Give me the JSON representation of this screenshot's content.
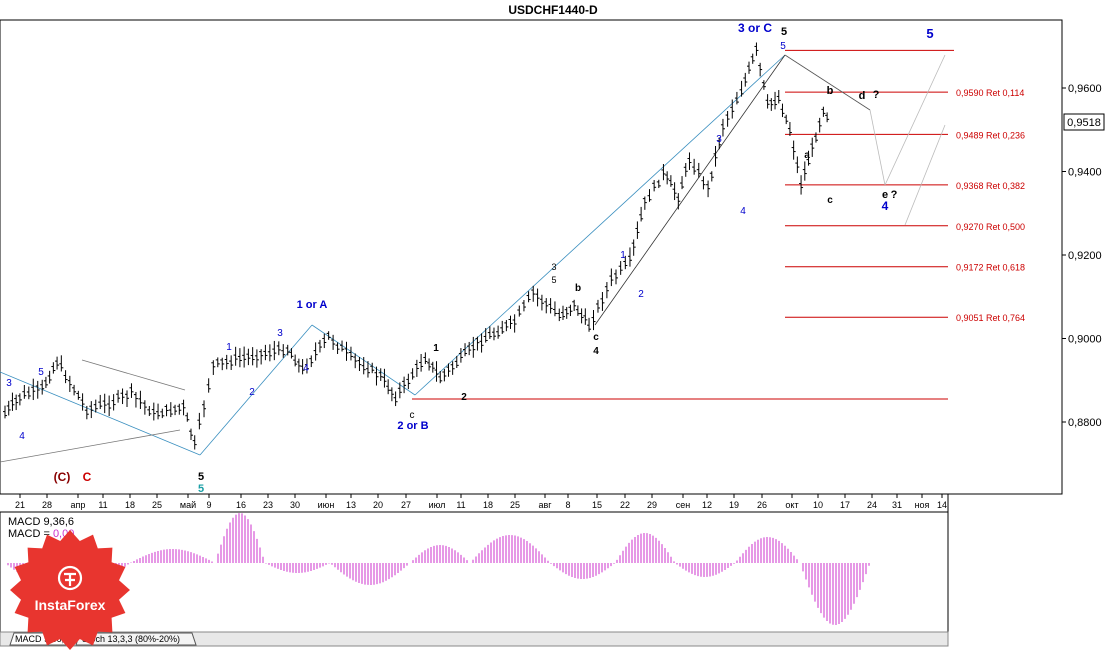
{
  "title": "USDCHF1440-D",
  "current_price": "0,9518",
  "colors": {
    "bar": "#000000",
    "ret": "#cc0000",
    "wave_blue": "#0000cc",
    "wave_cyan": "#1a9fa6",
    "wave_red": "#cc0000",
    "wave_dark": "#880000",
    "macd_pos": "#cc33cc",
    "macd_neg": "#cc33cc",
    "box": "#ff0000"
  },
  "price_axis": [
    "0,9600",
    "0,9400",
    "0,9200",
    "0,9000",
    "0,8800"
  ],
  "time_axis": [
    "21",
    "28",
    "апр",
    "11",
    "18",
    "25",
    "май",
    "9",
    "16",
    "23",
    "30",
    "июн",
    "13",
    "20",
    "27",
    "июл",
    "11",
    "18",
    "25",
    "авг",
    "8",
    "15",
    "22",
    "29",
    "сен",
    "12",
    "19",
    "26",
    "окт",
    "10",
    "17",
    "24",
    "31",
    "ноя",
    "14"
  ],
  "retracements": [
    {
      "label": "0,9590 Ret 0,114",
      "value": 0.959
    },
    {
      "label": "0,9489 Ret 0,236",
      "value": 0.9489
    },
    {
      "label": "0,9368 Ret 0,382",
      "value": 0.9368
    },
    {
      "label": "0,9270 Ret 0,500",
      "value": 0.927
    },
    {
      "label": "0,9172 Ret 0,618",
      "value": 0.9172
    },
    {
      "label": "0,9051 Ret 0,764",
      "value": 0.9051
    }
  ],
  "support_level": 0.8855,
  "top_level": 0.969,
  "wave_labels": [
    {
      "t": "3 or C",
      "col": "blue",
      "b": true
    },
    {
      "t": "5",
      "col": "black",
      "b": true
    },
    {
      "t": "5",
      "col": "blue",
      "b": false
    },
    {
      "t": "5",
      "col": "blue",
      "b": true
    },
    {
      "t": "b",
      "col": "black",
      "b": true
    },
    {
      "t": "d",
      "col": "black",
      "b": true
    },
    {
      "t": "?",
      "col": "black",
      "b": true
    },
    {
      "t": "a",
      "col": "black",
      "b": true
    },
    {
      "t": "c",
      "col": "black",
      "b": true
    },
    {
      "t": "e",
      "col": "black",
      "b": true
    },
    {
      "t": "?",
      "col": "black",
      "b": true
    },
    {
      "t": "4",
      "col": "blue",
      "b": true
    },
    {
      "t": "1 or A",
      "col": "blue",
      "b": true
    },
    {
      "t": "2 or B",
      "col": "blue",
      "b": true
    },
    {
      "t": "(C)",
      "col": "darkred",
      "b": true
    },
    {
      "t": "C",
      "col": "red",
      "b": true
    },
    {
      "t": "5",
      "col": "black",
      "b": true
    },
    {
      "t": "5",
      "col": "cyan",
      "b": true
    },
    {
      "t": "3",
      "col": "blue",
      "b": false
    },
    {
      "t": "5",
      "col": "blue",
      "b": false
    },
    {
      "t": "4",
      "col": "blue",
      "b": false
    },
    {
      "t": "1",
      "col": "blue",
      "b": false
    },
    {
      "t": "2",
      "col": "blue",
      "b": false
    },
    {
      "t": "3",
      "col": "blue",
      "b": false
    },
    {
      "t": "4",
      "col": "blue",
      "b": false
    },
    {
      "t": "1",
      "col": "blue",
      "b": false
    },
    {
      "t": "2",
      "col": "blue",
      "b": false
    },
    {
      "t": "3",
      "col": "blue",
      "b": false
    },
    {
      "t": "4",
      "col": "blue",
      "b": false
    },
    {
      "t": "3",
      "col": "black",
      "b": false
    },
    {
      "t": "5",
      "col": "black",
      "b": false
    },
    {
      "t": "c",
      "col": "black",
      "b": false
    },
    {
      "t": "1",
      "col": "black",
      "b": true
    },
    {
      "t": "2",
      "col": "black",
      "b": true
    },
    {
      "t": "4",
      "col": "black",
      "b": true
    },
    {
      "t": "b",
      "col": "black",
      "b": true
    },
    {
      "t": "c",
      "col": "black",
      "b": true
    }
  ],
  "indicator": {
    "line1": "MACD 9,36,6",
    "line2_prefix": "MACD = ",
    "line2_value": "0,00",
    "tab1": "MACD 9,36,6",
    "tab2": "Stoch 13,3,3 (80%-20%)"
  },
  "logo": {
    "brand": "InstaForex"
  },
  "chart_data": {
    "type": "candlestick",
    "title": "USDCHF1440-D",
    "y_axis": {
      "ticks": [
        0.96,
        0.94,
        0.92,
        0.9,
        0.88
      ],
      "ylim": [
        0.8715,
        0.9765
      ]
    },
    "path_points": [
      {
        "x": "Mar 17",
        "y": 0.882
      },
      {
        "x": "Mar 21",
        "y": 0.886
      },
      {
        "x": "Mar 27",
        "y": 0.888
      },
      {
        "x": "Mar 31",
        "y": 0.8945
      },
      {
        "x": "Apr 8",
        "y": 0.883
      },
      {
        "x": "Apr 14",
        "y": 0.8845
      },
      {
        "x": "Apr 20",
        "y": 0.887
      },
      {
        "x": "Apr 26",
        "y": 0.882
      },
      {
        "x": "May 4",
        "y": 0.8835
      },
      {
        "x": "May 7",
        "y": 0.8745
      },
      {
        "x": "May 12",
        "y": 0.8935
      },
      {
        "x": "May 18",
        "y": 0.895
      },
      {
        "x": "May 26",
        "y": 0.8965
      },
      {
        "x": "Jun 1",
        "y": 0.8975
      },
      {
        "x": "Jun 5",
        "y": 0.8925
      },
      {
        "x": "Jun 12",
        "y": 0.9005
      },
      {
        "x": "Jun 18",
        "y": 0.8955
      },
      {
        "x": "Jun 26",
        "y": 0.891
      },
      {
        "x": "Jun 30",
        "y": 0.886
      },
      {
        "x": "Jul 8",
        "y": 0.8955
      },
      {
        "x": "Jul 12",
        "y": 0.8905
      },
      {
        "x": "Jul 22",
        "y": 0.899
      },
      {
        "x": "Aug 1",
        "y": 0.904
      },
      {
        "x": "Aug 6",
        "y": 0.911
      },
      {
        "x": "Aug 13",
        "y": 0.9055
      },
      {
        "x": "Aug 17",
        "y": 0.908
      },
      {
        "x": "Aug 21",
        "y": 0.903
      },
      {
        "x": "Aug 27",
        "y": 0.914
      },
      {
        "x": "Sep 1",
        "y": 0.9185
      },
      {
        "x": "Sep 5",
        "y": 0.9325
      },
      {
        "x": "Sep 10",
        "y": 0.9395
      },
      {
        "x": "Sep 14",
        "y": 0.934
      },
      {
        "x": "Sep 17",
        "y": 0.943
      },
      {
        "x": "Sep 22",
        "y": 0.936
      },
      {
        "x": "Sep 26",
        "y": 0.951
      },
      {
        "x": "Oct 1",
        "y": 0.9595
      },
      {
        "x": "Oct 5",
        "y": 0.969
      },
      {
        "x": "Oct 8",
        "y": 0.956
      },
      {
        "x": "Oct 11",
        "y": 0.9575
      },
      {
        "x": "Oct 14",
        "y": 0.95
      },
      {
        "x": "Oct 17",
        "y": 0.937
      },
      {
        "x": "Oct 20",
        "y": 0.9455
      },
      {
        "x": "Oct 23",
        "y": 0.955
      },
      {
        "x": "Oct 25",
        "y": 0.9518
      }
    ],
    "retracements": [
      0.959,
      0.9489,
      0.9368,
      0.927,
      0.9172,
      0.9051
    ],
    "indicator": {
      "name": "MACD 9,36,6",
      "value": "0,00"
    }
  }
}
